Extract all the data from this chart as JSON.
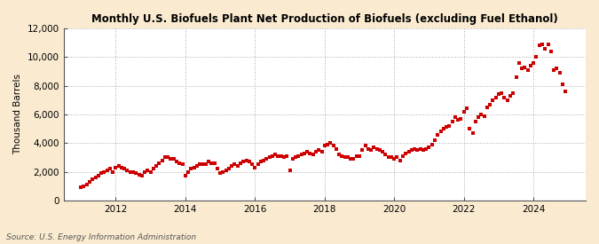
{
  "title": "Monthly U.S. Biofuels Plant Net Production of Biofuels (excluding Fuel Ethanol)",
  "ylabel": "Thousand Barrels",
  "source": "Source: U.S. Energy Information Administration",
  "fig_background_color": "#faebd0",
  "plot_background_color": "#ffffff",
  "dot_color": "#cc0000",
  "ylim": [
    0,
    12000
  ],
  "yticks": [
    0,
    2000,
    4000,
    6000,
    8000,
    10000,
    12000
  ],
  "ytick_labels": [
    "0",
    "2,000",
    "4,000",
    "6,000",
    "8,000",
    "10,000",
    "12,000"
  ],
  "xticks": [
    2012,
    2014,
    2016,
    2018,
    2020,
    2022,
    2024
  ],
  "xlim_start_year": 2010.5,
  "xlim_end_year": 2025.5,
  "data": [
    [
      2011.0,
      900
    ],
    [
      2011.083,
      1000
    ],
    [
      2011.167,
      1100
    ],
    [
      2011.25,
      1300
    ],
    [
      2011.333,
      1450
    ],
    [
      2011.417,
      1600
    ],
    [
      2011.5,
      1700
    ],
    [
      2011.583,
      1900
    ],
    [
      2011.667,
      2000
    ],
    [
      2011.75,
      2100
    ],
    [
      2011.833,
      2200
    ],
    [
      2011.917,
      2000
    ],
    [
      2012.0,
      2300
    ],
    [
      2012.083,
      2400
    ],
    [
      2012.167,
      2300
    ],
    [
      2012.25,
      2200
    ],
    [
      2012.333,
      2100
    ],
    [
      2012.417,
      2000
    ],
    [
      2012.5,
      2000
    ],
    [
      2012.583,
      1900
    ],
    [
      2012.667,
      1800
    ],
    [
      2012.75,
      1700
    ],
    [
      2012.833,
      2000
    ],
    [
      2012.917,
      2100
    ],
    [
      2013.0,
      2000
    ],
    [
      2013.083,
      2200
    ],
    [
      2013.167,
      2400
    ],
    [
      2013.25,
      2600
    ],
    [
      2013.333,
      2800
    ],
    [
      2013.417,
      3000
    ],
    [
      2013.5,
      3000
    ],
    [
      2013.583,
      2900
    ],
    [
      2013.667,
      2900
    ],
    [
      2013.75,
      2700
    ],
    [
      2013.833,
      2600
    ],
    [
      2013.917,
      2500
    ],
    [
      2014.0,
      1700
    ],
    [
      2014.083,
      2000
    ],
    [
      2014.167,
      2200
    ],
    [
      2014.25,
      2300
    ],
    [
      2014.333,
      2400
    ],
    [
      2014.417,
      2500
    ],
    [
      2014.5,
      2500
    ],
    [
      2014.583,
      2500
    ],
    [
      2014.667,
      2700
    ],
    [
      2014.75,
      2600
    ],
    [
      2014.833,
      2600
    ],
    [
      2014.917,
      2200
    ],
    [
      2015.0,
      1900
    ],
    [
      2015.083,
      2000
    ],
    [
      2015.167,
      2100
    ],
    [
      2015.25,
      2200
    ],
    [
      2015.333,
      2400
    ],
    [
      2015.417,
      2500
    ],
    [
      2015.5,
      2400
    ],
    [
      2015.583,
      2600
    ],
    [
      2015.667,
      2700
    ],
    [
      2015.75,
      2800
    ],
    [
      2015.833,
      2700
    ],
    [
      2015.917,
      2500
    ],
    [
      2016.0,
      2300
    ],
    [
      2016.083,
      2500
    ],
    [
      2016.167,
      2700
    ],
    [
      2016.25,
      2800
    ],
    [
      2016.333,
      2900
    ],
    [
      2016.417,
      3000
    ],
    [
      2016.5,
      3100
    ],
    [
      2016.583,
      3200
    ],
    [
      2016.667,
      3100
    ],
    [
      2016.75,
      3100
    ],
    [
      2016.833,
      3000
    ],
    [
      2016.917,
      3100
    ],
    [
      2017.0,
      2100
    ],
    [
      2017.083,
      2900
    ],
    [
      2017.167,
      3000
    ],
    [
      2017.25,
      3100
    ],
    [
      2017.333,
      3200
    ],
    [
      2017.417,
      3300
    ],
    [
      2017.5,
      3400
    ],
    [
      2017.583,
      3300
    ],
    [
      2017.667,
      3200
    ],
    [
      2017.75,
      3400
    ],
    [
      2017.833,
      3500
    ],
    [
      2017.917,
      3400
    ],
    [
      2018.0,
      3800
    ],
    [
      2018.083,
      3900
    ],
    [
      2018.167,
      4000
    ],
    [
      2018.25,
      3800
    ],
    [
      2018.333,
      3600
    ],
    [
      2018.417,
      3200
    ],
    [
      2018.5,
      3100
    ],
    [
      2018.583,
      3000
    ],
    [
      2018.667,
      3000
    ],
    [
      2018.75,
      2900
    ],
    [
      2018.833,
      2900
    ],
    [
      2018.917,
      3100
    ],
    [
      2019.0,
      3100
    ],
    [
      2019.083,
      3500
    ],
    [
      2019.167,
      3800
    ],
    [
      2019.25,
      3600
    ],
    [
      2019.333,
      3500
    ],
    [
      2019.417,
      3700
    ],
    [
      2019.5,
      3600
    ],
    [
      2019.583,
      3500
    ],
    [
      2019.667,
      3400
    ],
    [
      2019.75,
      3200
    ],
    [
      2019.833,
      3000
    ],
    [
      2019.917,
      3000
    ],
    [
      2020.0,
      2900
    ],
    [
      2020.083,
      3000
    ],
    [
      2020.167,
      2800
    ],
    [
      2020.25,
      3100
    ],
    [
      2020.333,
      3300
    ],
    [
      2020.417,
      3400
    ],
    [
      2020.5,
      3500
    ],
    [
      2020.583,
      3600
    ],
    [
      2020.667,
      3500
    ],
    [
      2020.75,
      3600
    ],
    [
      2020.833,
      3500
    ],
    [
      2020.917,
      3600
    ],
    [
      2021.0,
      3700
    ],
    [
      2021.083,
      3900
    ],
    [
      2021.167,
      4200
    ],
    [
      2021.25,
      4600
    ],
    [
      2021.333,
      4800
    ],
    [
      2021.417,
      5000
    ],
    [
      2021.5,
      5100
    ],
    [
      2021.583,
      5200
    ],
    [
      2021.667,
      5500
    ],
    [
      2021.75,
      5800
    ],
    [
      2021.833,
      5600
    ],
    [
      2021.917,
      5700
    ],
    [
      2022.0,
      6200
    ],
    [
      2022.083,
      6400
    ],
    [
      2022.167,
      5000
    ],
    [
      2022.25,
      4700
    ],
    [
      2022.333,
      5500
    ],
    [
      2022.417,
      5800
    ],
    [
      2022.5,
      6000
    ],
    [
      2022.583,
      5900
    ],
    [
      2022.667,
      6500
    ],
    [
      2022.75,
      6700
    ],
    [
      2022.833,
      7000
    ],
    [
      2022.917,
      7200
    ],
    [
      2023.0,
      7400
    ],
    [
      2023.083,
      7500
    ],
    [
      2023.167,
      7200
    ],
    [
      2023.25,
      7000
    ],
    [
      2023.333,
      7300
    ],
    [
      2023.417,
      7500
    ],
    [
      2023.5,
      8600
    ],
    [
      2023.583,
      9600
    ],
    [
      2023.667,
      9200
    ],
    [
      2023.75,
      9300
    ],
    [
      2023.833,
      9100
    ],
    [
      2023.917,
      9400
    ],
    [
      2024.0,
      9600
    ],
    [
      2024.083,
      10000
    ],
    [
      2024.167,
      10800
    ],
    [
      2024.25,
      10900
    ],
    [
      2024.333,
      10600
    ],
    [
      2024.417,
      10900
    ],
    [
      2024.5,
      10400
    ],
    [
      2024.583,
      9100
    ],
    [
      2024.667,
      9200
    ],
    [
      2024.75,
      8900
    ],
    [
      2024.833,
      8100
    ],
    [
      2024.917,
      7600
    ]
  ]
}
